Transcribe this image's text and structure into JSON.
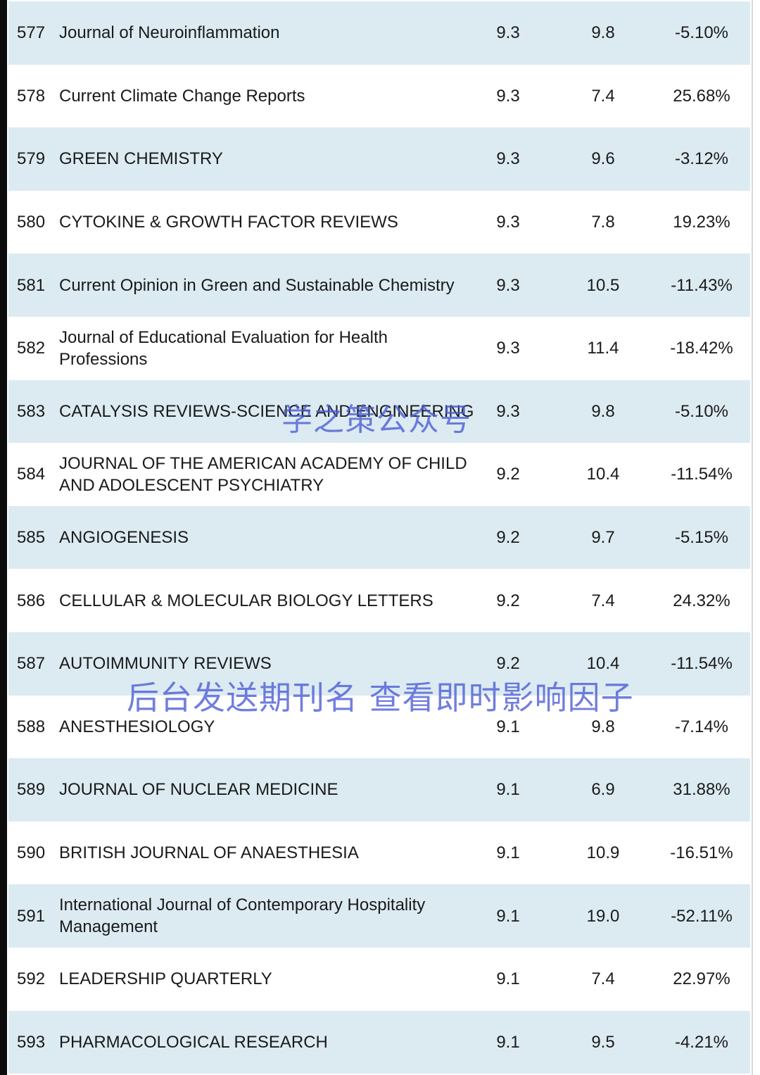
{
  "rows": [
    {
      "rank": "577",
      "journal": "Journal of Neuroinflammation",
      "value1": "9.3",
      "value2": "9.8",
      "change": "-5.10%"
    },
    {
      "rank": "578",
      "journal": "Current Climate Change Reports",
      "value1": "9.3",
      "value2": "7.4",
      "change": "25.68%"
    },
    {
      "rank": "579",
      "journal": "GREEN CHEMISTRY",
      "value1": "9.3",
      "value2": "9.6",
      "change": "-3.12%"
    },
    {
      "rank": "580",
      "journal": "CYTOKINE & GROWTH FACTOR REVIEWS",
      "value1": "9.3",
      "value2": "7.8",
      "change": "19.23%"
    },
    {
      "rank": "581",
      "journal": "Current Opinion in Green and Sustainable Chemistry",
      "value1": "9.3",
      "value2": "10.5",
      "change": "-11.43%"
    },
    {
      "rank": "582",
      "journal": "Journal of Educational Evaluation for Health Professions",
      "value1": "9.3",
      "value2": "11.4",
      "change": "-18.42%"
    },
    {
      "rank": "583",
      "journal": "CATALYSIS REVIEWS-SCIENCE AND ENGINEERING",
      "value1": "9.3",
      "value2": "9.8",
      "change": "-5.10%"
    },
    {
      "rank": "584",
      "journal": "JOURNAL OF THE AMERICAN ACADEMY OF CHILD AND ADOLESCENT PSYCHIATRY",
      "value1": "9.2",
      "value2": "10.4",
      "change": "-11.54%"
    },
    {
      "rank": "585",
      "journal": "ANGIOGENESIS",
      "value1": "9.2",
      "value2": "9.7",
      "change": "-5.15%"
    },
    {
      "rank": "586",
      "journal": "CELLULAR & MOLECULAR BIOLOGY LETTERS",
      "value1": "9.2",
      "value2": "7.4",
      "change": "24.32%"
    },
    {
      "rank": "587",
      "journal": "AUTOIMMUNITY REVIEWS",
      "value1": "9.2",
      "value2": "10.4",
      "change": "-11.54%"
    },
    {
      "rank": "588",
      "journal": "ANESTHESIOLOGY",
      "value1": "9.1",
      "value2": "9.8",
      "change": "-7.14%"
    },
    {
      "rank": "589",
      "journal": "JOURNAL OF NUCLEAR MEDICINE",
      "value1": "9.1",
      "value2": "6.9",
      "change": "31.88%"
    },
    {
      "rank": "590",
      "journal": "BRITISH JOURNAL OF ANAESTHESIA",
      "value1": "9.1",
      "value2": "10.9",
      "change": "-16.51%"
    },
    {
      "rank": "591",
      "journal": "International Journal of Contemporary Hospitality Management",
      "value1": "9.1",
      "value2": "19.0",
      "change": "-52.11%"
    },
    {
      "rank": "592",
      "journal": "LEADERSHIP QUARTERLY",
      "value1": "9.1",
      "value2": "7.4",
      "change": "22.97%"
    },
    {
      "rank": "593",
      "journal": "PHARMACOLOGICAL RESEARCH",
      "value1": "9.1",
      "value2": "9.5",
      "change": "-4.21%"
    }
  ],
  "watermarks": {
    "top": "学之策公众号",
    "bottom": "后台发送期刊名 查看即时影响因子"
  },
  "colors": {
    "row_shaded": "#dcebf2",
    "row_plain": "#ffffff",
    "watermark": "#4a5bd6"
  }
}
